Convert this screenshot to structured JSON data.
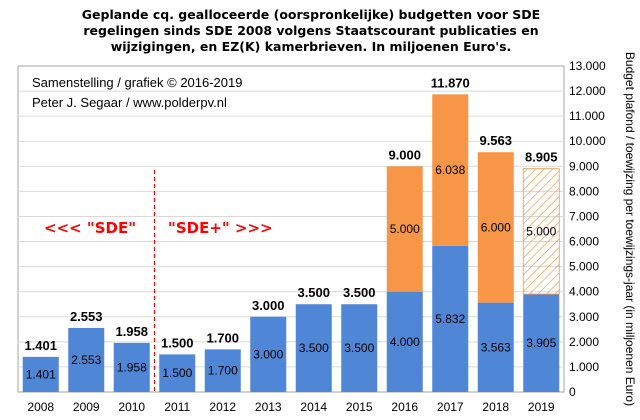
{
  "title": [
    "Geplande cq. gealloceerde (oorspronkelijke) budgetten voor SDE",
    "regelingen sinds SDE 2008 volgens Staatscourant publicaties en",
    "wijzigingen, en EZ(K) kamerbrieven. In miljoenen Euro's."
  ],
  "credits": [
    "Samenstelling / grafiek © 2016-2019",
    "Peter J. Segaar / www.polderpv.nl"
  ],
  "era_labels": {
    "left": "<<< \"SDE\"",
    "right": "\"SDE+\" >>>"
  },
  "colors": {
    "base": "#4f86d6",
    "extra": "#f79646",
    "extra_hatched": "#f79646",
    "gridline": "#d9d9d9",
    "divider": "#ff0000",
    "estimate_total": "#808080"
  },
  "chart_data": {
    "type": "bar",
    "stacked": true,
    "categories": [
      "2008",
      "2009",
      "2010",
      "2011",
      "2012",
      "2013",
      "2014",
      "2015",
      "2016",
      "2017",
      "2018",
      "2019"
    ],
    "series": [
      {
        "values": [
          1.401,
          2.553,
          1.958,
          1.5,
          1.7,
          3.0,
          3.5,
          3.5,
          4.0,
          5.832,
          3.563,
          3.905
        ],
        "labels": [
          "1.401",
          "2.553",
          "1.958",
          "1.500",
          "1.700",
          "3.000",
          "3.500",
          "3.500",
          "4.000",
          "5.832",
          "3.563",
          "3.905"
        ]
      },
      {
        "values": [
          0,
          0,
          0,
          0,
          0,
          0,
          0,
          0,
          5.0,
          6.038,
          6.0,
          5.0
        ],
        "labels": [
          "",
          "",
          "",
          "",
          "",
          "",
          "",
          "",
          "5.000",
          "6.038",
          "6.000",
          "5.000"
        ],
        "hatched": [
          false,
          false,
          false,
          false,
          false,
          false,
          false,
          false,
          false,
          false,
          false,
          true
        ]
      }
    ],
    "totals": [
      "1.401",
      "2.553",
      "1.958",
      "1.500",
      "1.700",
      "3.000",
      "3.500",
      "3.500",
      "9.000",
      "11.870",
      "9.563",
      "8.905"
    ],
    "totals_estimate": [
      false,
      false,
      false,
      false,
      false,
      false,
      false,
      false,
      false,
      false,
      false,
      true
    ],
    "ylabel": "Budget plafond / toewijzing per toewijzings-jaar (in miljoenen Euro)",
    "ylim": [
      0,
      13
    ],
    "ytick_step": 1,
    "ytick_labels": [
      "0",
      "1.000",
      "2.000",
      "3.000",
      "4.000",
      "5.000",
      "6.000",
      "7.000",
      "8.000",
      "9.000",
      "10.000",
      "11.000",
      "12.000",
      "13.000"
    ],
    "yaxis_side": "right",
    "grid": true,
    "legend": "none",
    "divider_between": [
      "2010",
      "2011"
    ]
  }
}
